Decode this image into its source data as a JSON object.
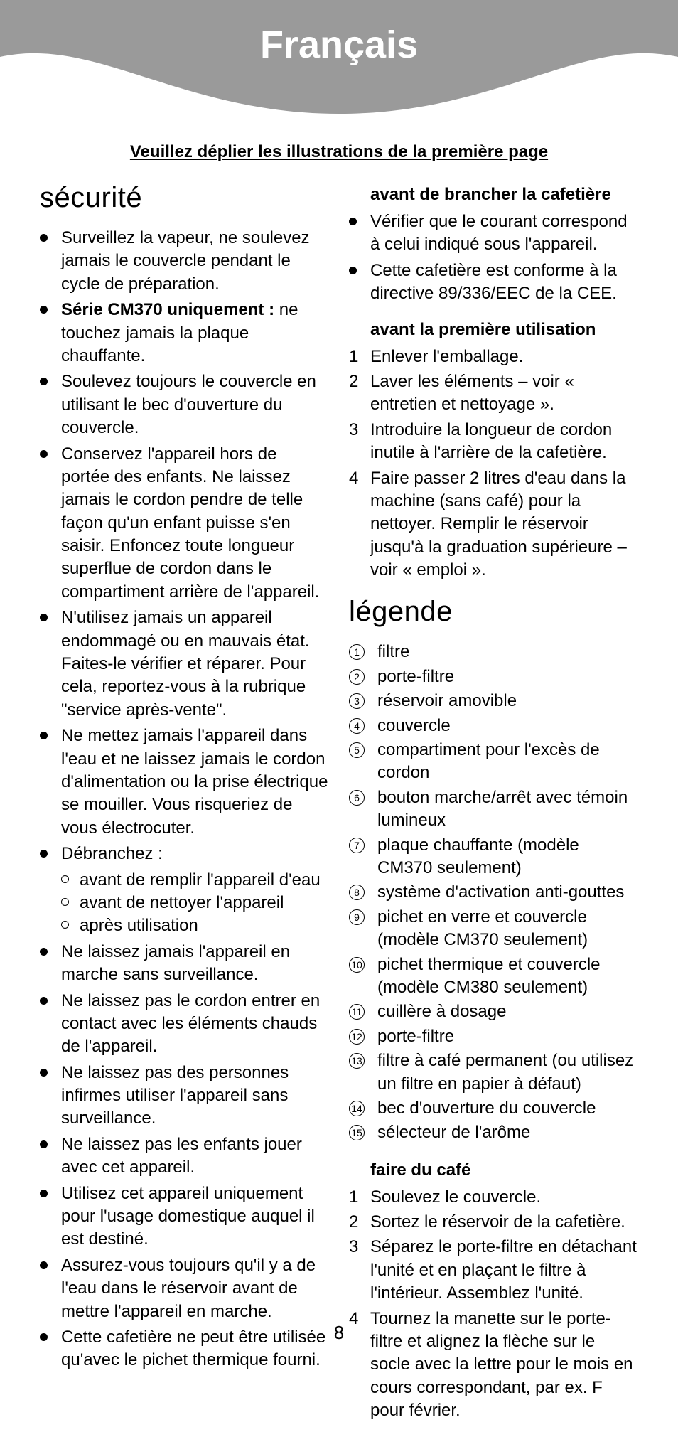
{
  "page_number": "8",
  "banner_title": "Français",
  "instruction": "Veuillez déplier les illustrations de la première page",
  "left": {
    "heading": "sécurité",
    "bullets": [
      {
        "html": "Surveillez la vapeur, ne soulevez jamais le couvercle pendant le cycle de préparation."
      },
      {
        "lead_bold": "Série CM370 uniquement :",
        "rest": " ne touchez jamais la plaque chauffante."
      },
      {
        "html": "Soulevez toujours le couvercle en utilisant le bec d'ouverture du couvercle."
      },
      {
        "html": "Conservez l'appareil hors de portée des enfants. Ne laissez jamais le cordon pendre de telle façon qu'un enfant puisse s'en saisir. Enfoncez toute longueur superflue de cordon dans le compartiment arrière de l'appareil."
      },
      {
        "html": "N'utilisez jamais un appareil endommagé ou en mauvais état. Faites-le vérifier et réparer. Pour cela, reportez-vous à la rubrique \"service après-vente\"."
      },
      {
        "html": "Ne mettez jamais l'appareil dans l'eau et ne laissez jamais le cordon d'alimentation ou la prise électrique se mouiller. Vous risqueriez de vous électrocuter."
      },
      {
        "html": "Débranchez :",
        "sub": [
          "avant de remplir l'appareil d'eau",
          "avant de nettoyer l'appareil",
          "après utilisation"
        ]
      },
      {
        "html": "Ne laissez jamais l'appareil en marche sans surveillance."
      },
      {
        "html": "Ne laissez pas le cordon entrer en contact avec les éléments chauds de l'appareil."
      },
      {
        "html": "Ne laissez pas des personnes infirmes utiliser l'appareil sans surveillance."
      },
      {
        "html": "Ne laissez pas les enfants jouer avec cet appareil."
      },
      {
        "html": "Utilisez cet appareil uniquement pour l'usage domestique auquel il est destiné."
      },
      {
        "html": "Assurez-vous toujours qu'il y a de l'eau dans le réservoir avant de mettre l'appareil en marche."
      },
      {
        "html": "Cette cafetière ne peut être utilisée qu'avec le pichet thermique fourni."
      }
    ]
  },
  "right": {
    "before_plug": {
      "heading": "avant de brancher la cafetière",
      "bullets": [
        "Vérifier que le courant correspond à celui indiqué sous l'appareil.",
        "Cette cafetière est conforme à la directive 89/336/EEC de la CEE."
      ]
    },
    "first_use": {
      "heading": "avant la première utilisation",
      "items": [
        "Enlever l'emballage.",
        "Laver les éléments – voir « entretien et nettoyage ».",
        "Introduire la longueur de cordon inutile à l'arrière de la cafetière.",
        "Faire passer 2 litres d'eau dans la machine (sans café) pour la nettoyer. Remplir le réservoir jusqu'à la graduation supérieure – voir « emploi »."
      ]
    },
    "legend_heading": "légende",
    "legend": [
      "filtre",
      "porte-filtre",
      "réservoir amovible",
      "couvercle",
      "compartiment pour l'excès de cordon",
      "bouton marche/arrêt avec témoin lumineux",
      "plaque chauffante (modèle CM370 seulement)",
      "système d'activation anti-gouttes",
      "pichet en verre et couvercle (modèle CM370 seulement)",
      "pichet thermique et couvercle (modèle CM380 seulement)",
      "cuillère à dosage",
      "porte-filtre",
      "filtre à café permanent (ou utilisez un filtre en papier à défaut)",
      "bec d'ouverture du couvercle",
      "sélecteur de l'arôme"
    ],
    "make_coffee": {
      "heading": "faire du café",
      "items": [
        "Soulevez le couvercle.",
        "Sortez le réservoir de la cafetière.",
        "Séparez le porte-filtre en détachant l'unité et en plaçant le filtre à l'intérieur. Assemblez l'unité.",
        "Tournez la manette sur le porte-filtre et alignez la flèche sur le socle avec la lettre pour le mois en cours correspondant, par ex. F pour février."
      ]
    }
  },
  "colors": {
    "banner_bg": "#9a9a9a",
    "banner_text": "#ffffff",
    "text": "#000000"
  }
}
